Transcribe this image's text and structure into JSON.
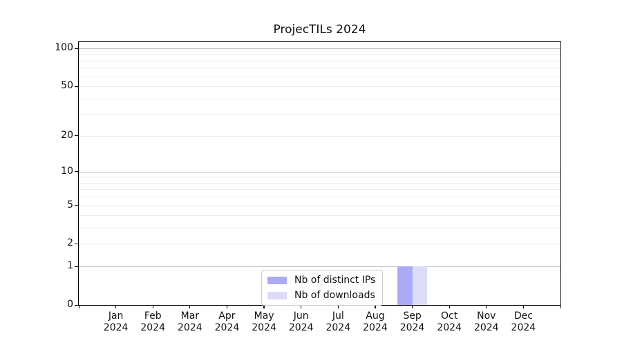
{
  "chart_data": {
    "type": "bar",
    "title": "ProjecTILs 2024",
    "x_axis": {
      "months": [
        "Jan",
        "Feb",
        "Mar",
        "Apr",
        "May",
        "Jun",
        "Jul",
        "Aug",
        "Sep",
        "Oct",
        "Nov",
        "Dec"
      ],
      "year": "2024"
    },
    "y_axis": {
      "scale": "log1p",
      "ticks": [
        0,
        1,
        2,
        5,
        10,
        20,
        50,
        100
      ],
      "major_gridlines": [
        1,
        10,
        100
      ],
      "minor_gridlines": [
        2,
        3,
        4,
        5,
        6,
        7,
        8,
        9,
        20,
        30,
        40,
        50,
        60,
        70,
        80,
        90
      ],
      "max": 100
    },
    "series": [
      {
        "name": "Nb of distinct IPs",
        "color": "#aaaaf5",
        "values": [
          0,
          0,
          0,
          0,
          0,
          0,
          0,
          0,
          1,
          0,
          0,
          0
        ]
      },
      {
        "name": "Nb of downloads",
        "color": "#dcdcf8",
        "values": [
          0,
          0,
          0,
          0,
          0,
          0,
          0,
          0,
          1,
          0,
          0,
          0
        ]
      }
    ],
    "legend": {
      "position": "bottom-center"
    },
    "grid": true
  },
  "colors": {
    "minor_grid": "#ececec",
    "major_grid": "#c3c3c3",
    "spine": "#000000",
    "background": "#ffffff"
  }
}
